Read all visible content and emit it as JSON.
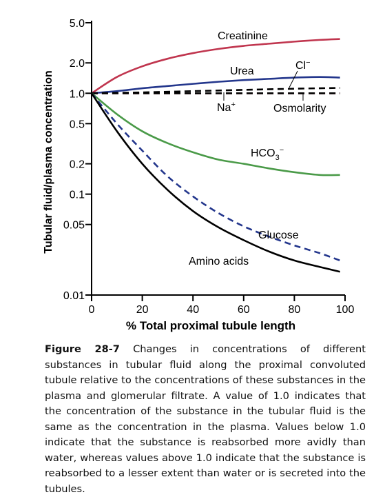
{
  "chart_data": {
    "type": "line",
    "xlabel": "% Total proximal tubule length",
    "ylabel": "Tubular fluid/plasma concentration",
    "xlim": [
      0,
      100
    ],
    "ylim": [
      0.01,
      5.0
    ],
    "yscale": "log",
    "grid": false,
    "x_ticks": [
      0,
      20,
      40,
      60,
      80,
      100
    ],
    "x_tick_labels": [
      "0",
      "20",
      "40",
      "60",
      "80",
      "100"
    ],
    "y_ticks": [
      0.01,
      0.05,
      0.1,
      0.2,
      0.5,
      1.0,
      2.0,
      5.0
    ],
    "y_tick_labels": [
      "0.01",
      "0.05",
      "0.1",
      "0.2",
      "0.5",
      "1.0",
      "2.0",
      "5.0"
    ],
    "series": [
      {
        "name": "Creatinine",
        "color": "#c0354e",
        "style": "solid",
        "x": [
          0,
          10,
          20,
          30,
          40,
          50,
          60,
          70,
          80,
          90,
          98
        ],
        "y": [
          1.0,
          1.45,
          1.85,
          2.2,
          2.5,
          2.75,
          2.95,
          3.1,
          3.25,
          3.38,
          3.45
        ]
      },
      {
        "name": "Urea",
        "color": "#23368c",
        "style": "solid",
        "x": [
          0,
          10,
          20,
          30,
          40,
          50,
          60,
          70,
          80,
          90,
          98
        ],
        "y": [
          1.0,
          1.05,
          1.12,
          1.18,
          1.24,
          1.3,
          1.35,
          1.39,
          1.43,
          1.45,
          1.43
        ]
      },
      {
        "name": "Cl−",
        "color": "#000000",
        "style": "dashed",
        "x": [
          0,
          20,
          40,
          60,
          80,
          98
        ],
        "y": [
          1.0,
          1.02,
          1.05,
          1.08,
          1.11,
          1.13
        ]
      },
      {
        "name": "Na+",
        "color": "#c0354e",
        "style": "dashed",
        "x": [
          0,
          20,
          40,
          60,
          80,
          98
        ],
        "y": [
          1.0,
          1.0,
          1.0,
          1.0,
          1.0,
          1.0
        ]
      },
      {
        "name": "Osmolarity",
        "color": "#000000",
        "style": "dashed",
        "x": [
          0,
          20,
          40,
          60,
          80,
          98
        ],
        "y": [
          1.0,
          1.0,
          1.0,
          1.0,
          1.0,
          1.0
        ]
      },
      {
        "name": "HCO3−",
        "color": "#4a9a48",
        "style": "solid",
        "x": [
          0,
          10,
          20,
          30,
          40,
          50,
          60,
          70,
          80,
          90,
          98
        ],
        "y": [
          1.0,
          0.62,
          0.42,
          0.32,
          0.26,
          0.22,
          0.2,
          0.18,
          0.165,
          0.155,
          0.155
        ]
      },
      {
        "name": "Glucose",
        "color": "#23368c",
        "style": "dashed",
        "x": [
          0,
          10,
          20,
          30,
          40,
          50,
          60,
          70,
          80,
          90,
          98
        ],
        "y": [
          1.0,
          0.5,
          0.27,
          0.15,
          0.095,
          0.065,
          0.048,
          0.038,
          0.031,
          0.026,
          0.022
        ]
      },
      {
        "name": "Amino acids",
        "color": "#000000",
        "style": "solid",
        "x": [
          0,
          10,
          20,
          30,
          40,
          50,
          60,
          70,
          80,
          90,
          98
        ],
        "y": [
          1.0,
          0.42,
          0.2,
          0.11,
          0.068,
          0.047,
          0.035,
          0.027,
          0.022,
          0.019,
          0.017
        ]
      }
    ],
    "annotations": [
      {
        "text": "Creatinine"
      },
      {
        "text": "Urea"
      },
      {
        "text": "Cl−"
      },
      {
        "text": "Na+"
      },
      {
        "text": "Osmolarity"
      },
      {
        "text": "HCO3−"
      },
      {
        "text": "Glucose"
      },
      {
        "text": "Amino acids"
      }
    ]
  },
  "caption": {
    "label": "Figure 28-7",
    "text": "Changes in concentrations of different substances in tubular fluid along the proximal convoluted tubule relative to the concentrations of these substances in the plasma and glomerular filtrate. A value of 1.0 indicates that the concentration of the substance in the tubular fluid is the same as the concentration in the plasma. Values below 1.0 indicate that the substance is reabsorbed more avidly than water, whereas values above 1.0 indicate that the substance is reabsorbed to a lesser extent than water or is secreted into the tubules."
  }
}
